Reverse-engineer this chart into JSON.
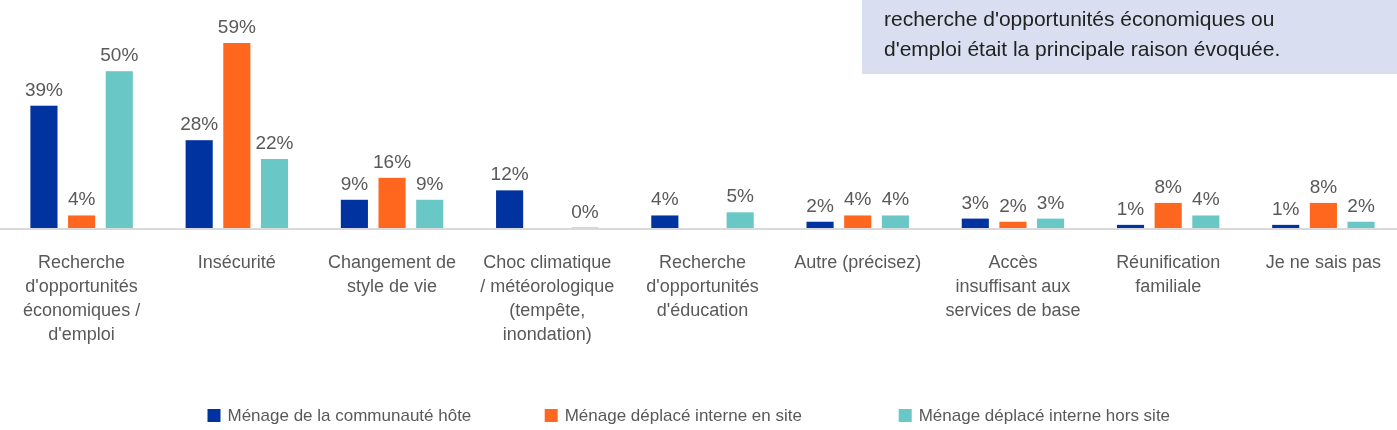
{
  "chart_data": {
    "type": "bar",
    "categories": [
      "Recherche d'opportunités économiques / d'emploi",
      "Insécurité",
      "Changement de style de vie",
      "Choc climatique / météorologique (tempête, inondation)",
      "Recherche d'opportunités d'éducation",
      "Autre (précisez)",
      "Accès insuffisant aux services de base",
      "Réunification familiale",
      "Je ne sais pas"
    ],
    "series": [
      {
        "name": "Ménage de la communauté hôte",
        "color": "#0033a0",
        "values": [
          39,
          28,
          9,
          12,
          4,
          2,
          3,
          1,
          1
        ],
        "value_labels": [
          "39%",
          "28%",
          "9%",
          "12%",
          "4%",
          "2%",
          "3%",
          "1%",
          "1%"
        ]
      },
      {
        "name": "Ménage déplacé interne en site",
        "color": "#ff671f",
        "values": [
          4,
          59,
          16,
          null,
          null,
          4,
          2,
          8,
          8
        ],
        "value_labels": [
          "4%",
          "59%",
          "16%",
          null,
          null,
          "4%",
          "2%",
          "8%",
          "8%"
        ]
      },
      {
        "name": "Ménage déplacé interne hors site",
        "color": "#69c8c6",
        "values": [
          50,
          22,
          9,
          0,
          5,
          4,
          3,
          4,
          2
        ],
        "value_labels": [
          "50%",
          "22%",
          "9%",
          "0%",
          "5%",
          "4%",
          "3%",
          "4%",
          "2%"
        ]
      }
    ],
    "legend": "bottom",
    "annotations": [
      "recherche d'opportunités économiques ou d'emploi était la principale raison évoquée."
    ]
  }
}
